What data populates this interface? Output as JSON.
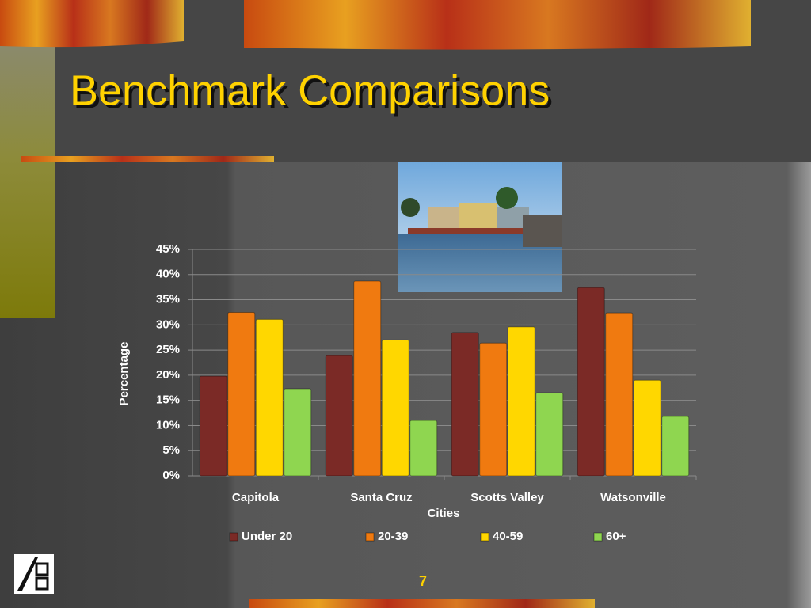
{
  "chart_data": {
    "type": "bar",
    "title": "Benchmark Comparisons",
    "categories": [
      "Capitola",
      "Santa Cruz",
      "Scotts Valley",
      "Watsonville"
    ],
    "series": [
      {
        "name": "Under 20",
        "color": "#7b2a26",
        "values": [
          19.8,
          23.9,
          28.5,
          37.4
        ]
      },
      {
        "name": "20-39",
        "color": "#f07a10",
        "values": [
          32.5,
          38.7,
          26.4,
          32.4
        ]
      },
      {
        "name": "40-59",
        "color": "#ffd700",
        "values": [
          31.1,
          27,
          29.6,
          19
        ]
      },
      {
        "name": "60+",
        "color": "#8fd650",
        "values": [
          17.3,
          11,
          16.5,
          11.8
        ]
      }
    ],
    "x_label": "Cities",
    "y_label": "Percentage",
    "ylim": [
      0,
      45
    ],
    "yticks": [
      {
        "value": 0,
        "label": "0%"
      },
      {
        "value": 5,
        "label": "5%"
      },
      {
        "value": 10,
        "label": "10%"
      },
      {
        "value": 15,
        "label": "15%"
      },
      {
        "value": 20,
        "label": "20%"
      },
      {
        "value": 25,
        "label": "25%"
      },
      {
        "value": 30,
        "label": "30%"
      },
      {
        "value": 35,
        "label": "35%"
      },
      {
        "value": 40,
        "label": "40%"
      },
      {
        "value": 45,
        "label": "45%"
      }
    ],
    "grid": true,
    "legend": "bottom"
  },
  "slide_number": "7"
}
